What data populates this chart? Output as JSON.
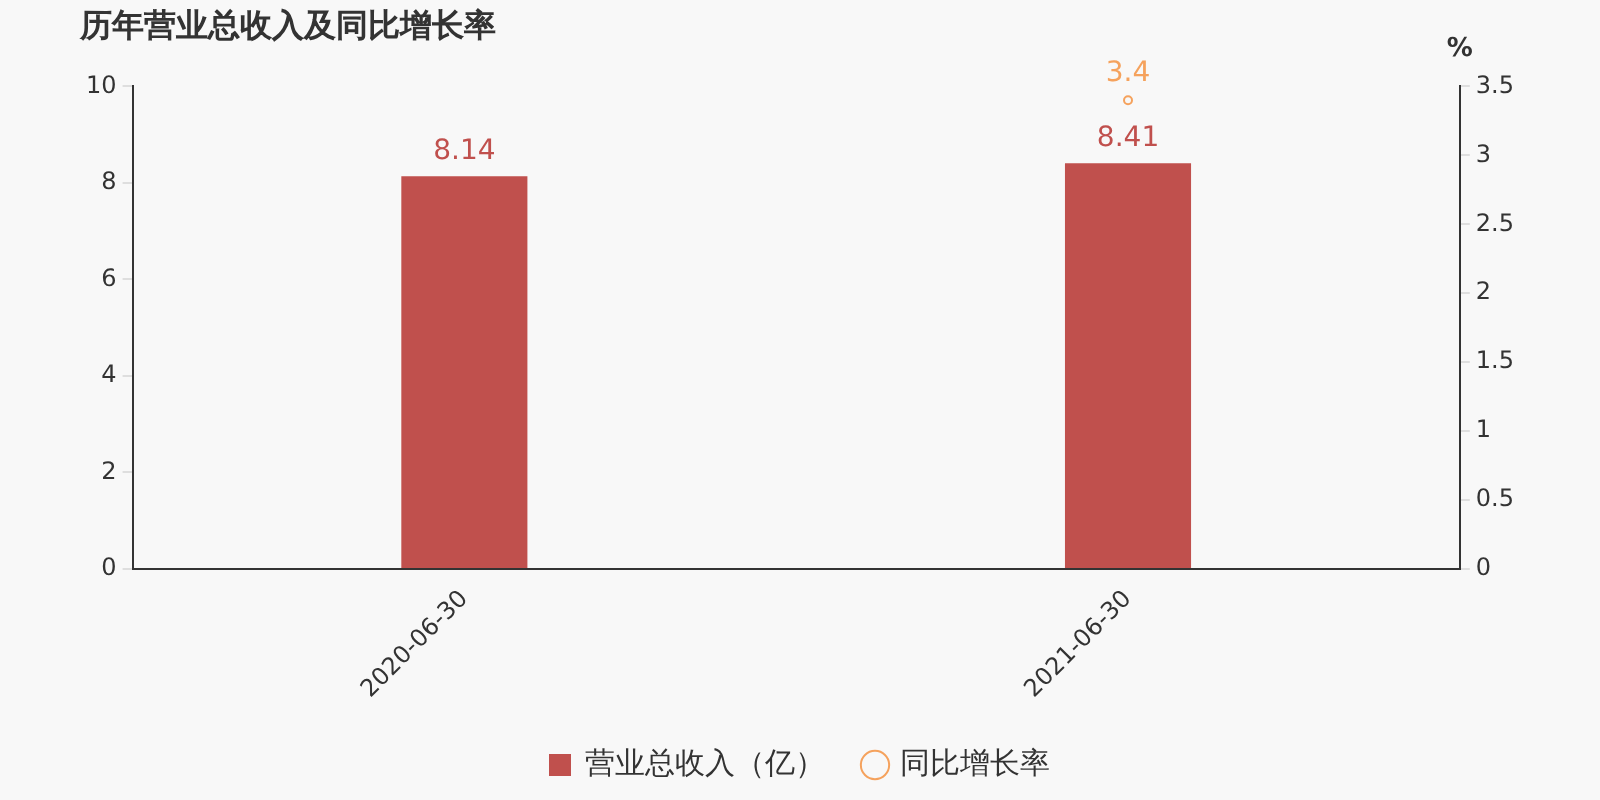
{
  "chart_data": {
    "type": "bar",
    "title": "历年营业总收入及同比增长率",
    "categories": [
      "2020-06-30",
      "2021-06-30"
    ],
    "series": [
      {
        "name": "营业总收入（亿）",
        "color": "#c0504d",
        "values": [
          8.14,
          8.41
        ]
      },
      {
        "name": "同比增长率",
        "type": "line",
        "axis": "y2",
        "color": "#f5a25d",
        "values": [
          null,
          3.4
        ],
        "marker": "circle"
      }
    ],
    "ylim": [
      0,
      10
    ],
    "yticks": [
      0,
      2,
      4,
      6,
      8,
      10
    ],
    "y2lim": [
      0,
      3.5
    ],
    "y2ticks": [
      0,
      0.5,
      1,
      1.5,
      2,
      2.5,
      3,
      3.5
    ],
    "y2label": "%",
    "data_labels": true,
    "grid": false,
    "legend": "bottom"
  }
}
